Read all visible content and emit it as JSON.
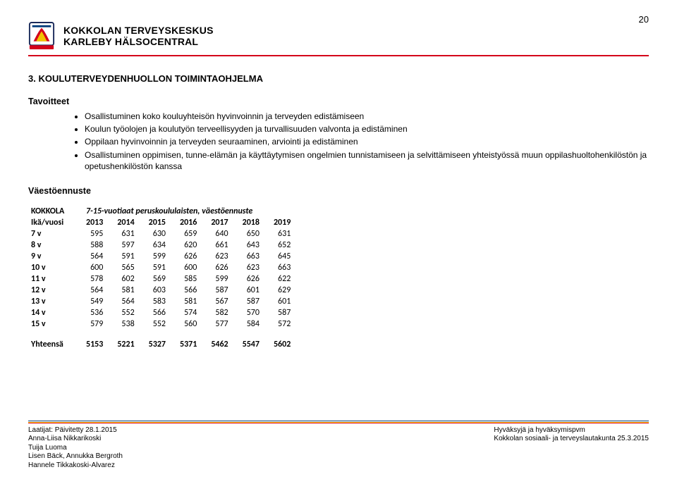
{
  "page_number": "20",
  "header": {
    "org_line1": "KOKKOLAN TERVEYSKESKUS",
    "org_line2": "KARLEBY HÄLSOCENTRAL"
  },
  "section_title": "3. KOULUTERVEYDENHUOLLON TOIMINTAOHJELMA",
  "goals_heading": "Tavoitteet",
  "goals": [
    "Osallistuminen koko kouluyhteisön hyvinvoinnin ja terveyden edistämiseen",
    "Koulun työolojen ja koulutyön terveellisyyden ja turvallisuuden valvonta ja edistäminen",
    "Oppilaan hyvinvoinnin ja terveyden seuraaminen, arviointi ja edistäminen",
    "Osallistuminen oppimisen, tunne-elämän ja käyttäytymisen ongelmien tunnistamiseen ja selvittämiseen yhteistyössä muun oppilashuoltohenkilöstön ja opetushenkilöstön kanssa"
  ],
  "population_heading": "Väestöennuste",
  "table": {
    "kokkola_label": "KOKKOLA",
    "caption": "7-15-vuotiaat peruskoululaisten, väestöennuste",
    "age_header": "Ikä/vuosi",
    "years": [
      "2013",
      "2014",
      "2015",
      "2016",
      "2017",
      "2018",
      "2019"
    ],
    "rows": [
      {
        "label": "7 v",
        "vals": [
          "595",
          "631",
          "630",
          "659",
          "640",
          "650",
          "631"
        ]
      },
      {
        "label": "8 v",
        "vals": [
          "588",
          "597",
          "634",
          "620",
          "661",
          "643",
          "652"
        ]
      },
      {
        "label": "9 v",
        "vals": [
          "564",
          "591",
          "599",
          "626",
          "623",
          "663",
          "645"
        ]
      },
      {
        "label": "10 v",
        "vals": [
          "600",
          "565",
          "591",
          "600",
          "626",
          "623",
          "663"
        ]
      },
      {
        "label": "11 v",
        "vals": [
          "578",
          "602",
          "569",
          "585",
          "599",
          "626",
          "622"
        ]
      },
      {
        "label": "12 v",
        "vals": [
          "564",
          "581",
          "603",
          "566",
          "587",
          "601",
          "629"
        ]
      },
      {
        "label": "13 v",
        "vals": [
          "549",
          "564",
          "583",
          "581",
          "567",
          "587",
          "601"
        ]
      },
      {
        "label": "14 v",
        "vals": [
          "536",
          "552",
          "566",
          "574",
          "582",
          "570",
          "587"
        ]
      },
      {
        "label": "15 v",
        "vals": [
          "579",
          "538",
          "552",
          "560",
          "577",
          "584",
          "572"
        ]
      }
    ],
    "total_label": "Yhteensä",
    "totals": [
      "5153",
      "5221",
      "5327",
      "5371",
      "5462",
      "5547",
      "5602"
    ]
  },
  "footer": {
    "left": [
      "Laatijat: Päivitetty 28.1.2015",
      "Anna-Liisa Nikkarikoski",
      "Tuija Luoma",
      "Lisen Bäck, Annukka Bergroth",
      "Hannele Tikkakoski-Alvarez"
    ],
    "right": [
      "Hyväksyjä ja hyväksymispvm",
      "Kokkolan sosiaali- ja terveyslautakunta 25.3.2015"
    ]
  }
}
